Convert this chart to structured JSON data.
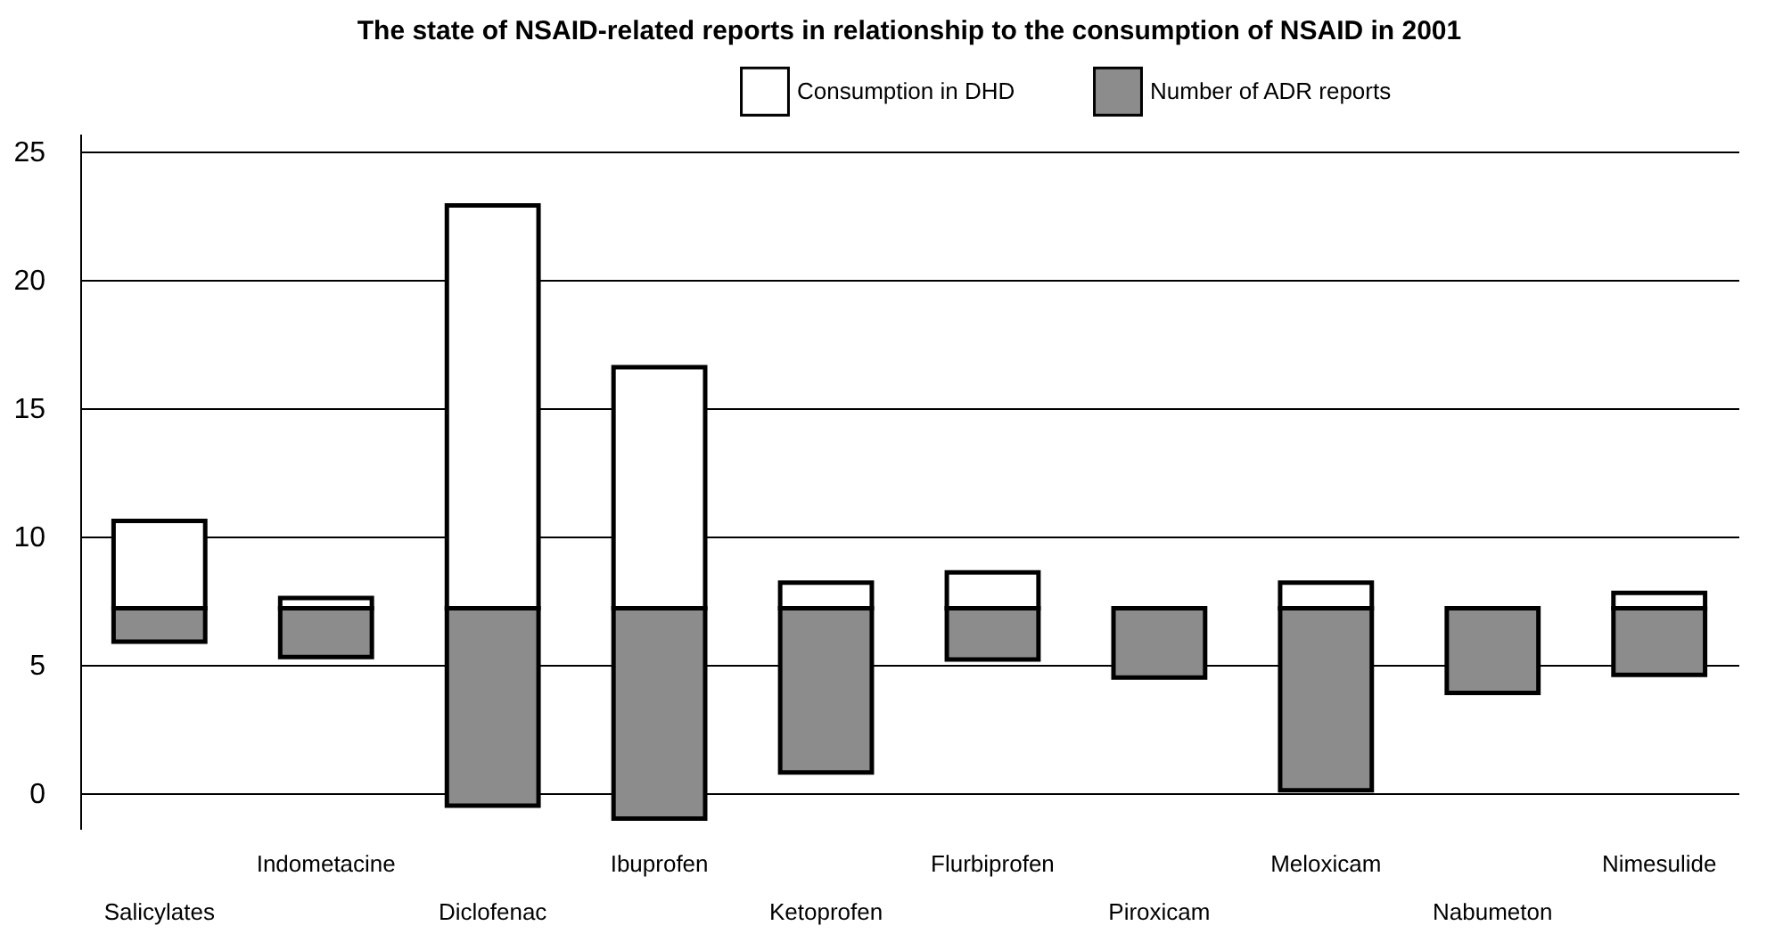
{
  "chart_data": {
    "type": "bar",
    "title": "The state of NSAID-related reports in relationship to the consumption of NSAID in 2001",
    "categories": [
      "Salicylates",
      "Indometacine",
      "Diclofenac",
      "Ibuprofen",
      "Ketoprofen",
      "Flurbiprofen",
      "Piroxicam",
      "Meloxicam",
      "Nabumeton",
      "Nimesulide"
    ],
    "series": [
      {
        "name": "Consumption in DHD",
        "color": "#ffffff",
        "base": [
          7.2,
          7.2,
          7.2,
          7.2,
          7.2,
          7.2,
          null,
          7.2,
          null,
          7.2
        ],
        "values": [
          3.4,
          0.4,
          15.7,
          9.4,
          1.0,
          1.4,
          null,
          1.0,
          null,
          0.6
        ]
      },
      {
        "name": "Number of ADR reports",
        "color": "#8c8c8c",
        "base": [
          5.9,
          5.3,
          -0.5,
          -1.0,
          0.8,
          5.2,
          4.5,
          0.1,
          3.9,
          4.6
        ],
        "values": [
          1.3,
          1.9,
          7.7,
          8.2,
          6.4,
          2.0,
          2.7,
          7.1,
          3.3,
          2.6
        ]
      }
    ],
    "ylim": [
      -1.4,
      25.7
    ],
    "yticks": [
      0,
      5,
      10,
      15,
      20,
      25
    ],
    "grid": "y",
    "legend": "top right"
  }
}
